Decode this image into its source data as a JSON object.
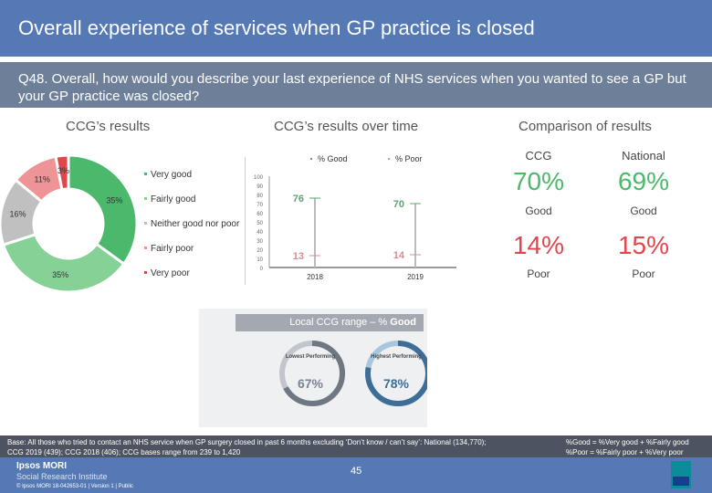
{
  "title": "Overall experience of services when GP practice is closed",
  "question": "Q48. Overall, how would you describe your last experience of NHS services when you wanted to see a GP but your GP practice was closed?",
  "sections": {
    "ccg": "CCG’s results",
    "over_time": "CCG’s results over time",
    "comparison": "Comparison of results"
  },
  "colors": {
    "very_good": "#4cb86b",
    "fairly_good": "#86d196",
    "neither": "#c0c0c0",
    "fairly_poor": "#ee9497",
    "very_poor": "#e0474c",
    "good_line": "#5aa571",
    "poor_line": "#d88d96"
  },
  "chart_data": [
    {
      "type": "pie",
      "donut": true,
      "labels": [
        "Very good",
        "Fairly good",
        "Neither good nor poor",
        "Fairly poor",
        "Very poor"
      ],
      "values": [
        35,
        35,
        16,
        11,
        3
      ],
      "data_labels": [
        "35%",
        "35%",
        "16%",
        "11%",
        "3%"
      ]
    },
    {
      "type": "line",
      "legend": [
        "% Good",
        "% Poor"
      ],
      "categories": [
        "2018",
        "2019"
      ],
      "series": [
        {
          "name": "% Good",
          "values": [
            76,
            70
          ]
        },
        {
          "name": "% Poor",
          "values": [
            13,
            14
          ]
        }
      ],
      "ylim": [
        0,
        100
      ],
      "yticks": [
        "0",
        "10",
        "20",
        "30",
        "40",
        "50",
        "60",
        "70",
        "80",
        "90",
        "100"
      ]
    }
  ],
  "comparison": {
    "ccg_label": "CCG",
    "national_label": "National",
    "good": {
      "ccg": "70%",
      "national": "69%",
      "label": "Good"
    },
    "poor": {
      "ccg": "14%",
      "national": "15%",
      "label": "Poor"
    }
  },
  "range": {
    "title_prefix": "Local CCG range – % ",
    "title_bold": "Good",
    "lowest": {
      "label": "Lowest Performing",
      "value": "67%",
      "pct": 67
    },
    "highest": {
      "label": "Highest Performing",
      "value": "78%",
      "pct": 78
    }
  },
  "footer": {
    "base": "Base: All those who tried to contact an NHS service when GP surgery closed in past 6 months excluding ‘Don’t know / can’t say’: National (134,770); CCG 2019 (439); CCG 2018 (406); CCG bases range from 239 to 1,420",
    "def_good": "%Good = %Very good + %Fairly good",
    "def_poor": "%Poor = %Fairly poor + %Very poor",
    "brand": "Ipsos MORI",
    "brand_sub": "Social Research Institute",
    "copyright": "© Ipsos MORI     18-042653-01 | Version 1 | Public",
    "page": "45"
  }
}
